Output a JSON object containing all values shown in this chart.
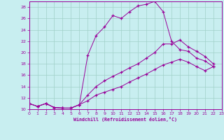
{
  "bg_color": "#c8eef0",
  "grid_color": "#a0d0c8",
  "line_color": "#990099",
  "xlabel": "Windchill (Refroidissement éolien,°C)",
  "xlim": [
    0,
    23
  ],
  "ylim": [
    10,
    29
  ],
  "yticks": [
    10,
    12,
    14,
    16,
    18,
    20,
    22,
    24,
    26,
    28
  ],
  "xticks": [
    0,
    1,
    2,
    3,
    4,
    5,
    6,
    7,
    8,
    9,
    10,
    11,
    12,
    13,
    14,
    15,
    16,
    17,
    18,
    19,
    20,
    21,
    22,
    23
  ],
  "curve1_x": [
    0,
    1,
    2,
    3,
    4,
    5,
    6,
    7,
    8,
    9,
    10,
    11,
    12,
    13,
    14,
    15,
    16,
    17,
    18,
    19,
    20,
    21,
    22
  ],
  "curve1_y": [
    11,
    10.5,
    11,
    10.3,
    10.2,
    10.2,
    10.8,
    19.5,
    23.0,
    24.5,
    26.5,
    26.0,
    27.2,
    28.2,
    28.5,
    29.0,
    27.2,
    22.0,
    20.5,
    20.2,
    19.0,
    18.5,
    17.5
  ],
  "curve2_x": [
    0,
    1,
    2,
    3,
    4,
    5,
    6,
    7,
    8,
    9,
    10,
    11,
    12,
    13,
    14,
    15,
    16,
    17,
    18,
    19,
    20,
    21,
    22
  ],
  "curve2_y": [
    11,
    10.5,
    11,
    10.3,
    10.2,
    10.2,
    10.8,
    12.5,
    14.0,
    15.0,
    15.8,
    16.5,
    17.3,
    18.0,
    19.0,
    20.0,
    21.5,
    21.5,
    22.2,
    21.0,
    20.2,
    19.3,
    18.0
  ],
  "curve3_x": [
    0,
    1,
    2,
    3,
    4,
    5,
    6,
    7,
    8,
    9,
    10,
    11,
    12,
    13,
    14,
    15,
    16,
    17,
    18,
    19,
    20,
    21,
    22
  ],
  "curve3_y": [
    11,
    10.5,
    11,
    10.3,
    10.2,
    10.2,
    10.8,
    11.5,
    12.5,
    13.0,
    13.5,
    14.0,
    14.8,
    15.5,
    16.2,
    17.0,
    17.8,
    18.3,
    18.8,
    18.3,
    17.5,
    16.8,
    17.5
  ]
}
